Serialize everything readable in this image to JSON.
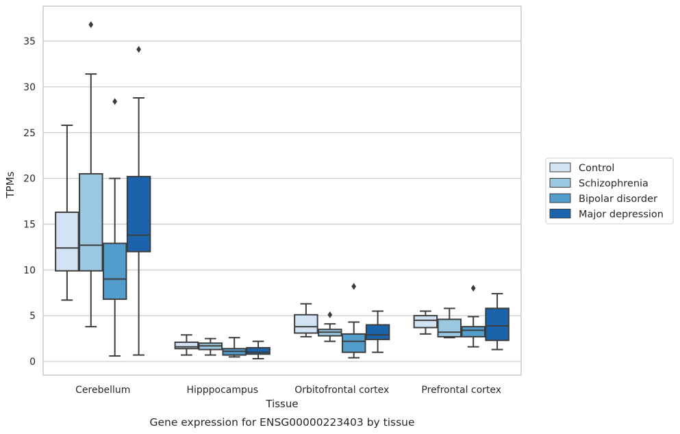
{
  "chart_data": {
    "type": "box",
    "title": "",
    "caption": "Gene expression for ENSG00000223403 by tissue",
    "xlabel": "Tissue",
    "ylabel": "TPMs",
    "ylim": [
      -1.5,
      38.5
    ],
    "yticks": [
      0,
      5,
      10,
      15,
      20,
      25,
      30,
      35
    ],
    "grid": "horizontal",
    "legend_position": "right",
    "categories": [
      "Cerebellum",
      "Hipppocampus",
      "Orbitofrontal cortex",
      "Prefrontal cortex"
    ],
    "series": [
      {
        "name": "Control",
        "color": "#d2e3f3",
        "boxes": [
          {
            "whisker_low": 6.7,
            "q1": 9.9,
            "median": 12.4,
            "q3": 16.3,
            "whisker_high": 25.8,
            "outliers": []
          },
          {
            "whisker_low": 0.7,
            "q1": 1.4,
            "median": 1.6,
            "q3": 2.1,
            "whisker_high": 2.9,
            "outliers": []
          },
          {
            "whisker_low": 2.7,
            "q1": 3.1,
            "median": 3.8,
            "q3": 5.1,
            "whisker_high": 6.3,
            "outliers": []
          },
          {
            "whisker_low": 3.0,
            "q1": 3.7,
            "median": 4.5,
            "q3": 5.0,
            "whisker_high": 5.5,
            "outliers": []
          }
        ]
      },
      {
        "name": "Schizophrenia",
        "color": "#9ac8e0",
        "boxes": [
          {
            "whisker_low": 3.8,
            "q1": 9.9,
            "median": 12.7,
            "q3": 20.5,
            "whisker_high": 31.4,
            "outliers": [
              36.8
            ]
          },
          {
            "whisker_low": 0.7,
            "q1": 1.3,
            "median": 1.7,
            "q3": 2.0,
            "whisker_high": 2.5,
            "outliers": []
          },
          {
            "whisker_low": 2.2,
            "q1": 2.8,
            "median": 3.2,
            "q3": 3.5,
            "whisker_high": 4.1,
            "outliers": [
              5.1
            ]
          },
          {
            "whisker_low": 2.6,
            "q1": 2.7,
            "median": 3.2,
            "q3": 4.6,
            "whisker_high": 5.8,
            "outliers": []
          }
        ]
      },
      {
        "name": "Bipolar disorder",
        "color": "#529dcc",
        "boxes": [
          {
            "whisker_low": 0.6,
            "q1": 6.8,
            "median": 9.0,
            "q3": 12.9,
            "whisker_high": 20.0,
            "outliers": [
              28.4
            ]
          },
          {
            "whisker_low": 0.5,
            "q1": 0.7,
            "median": 1.1,
            "q3": 1.4,
            "whisker_high": 2.6,
            "outliers": []
          },
          {
            "whisker_low": 0.4,
            "q1": 1.0,
            "median": 2.2,
            "q3": 3.0,
            "whisker_high": 4.3,
            "outliers": [
              8.2
            ]
          },
          {
            "whisker_low": 1.6,
            "q1": 2.7,
            "median": 3.4,
            "q3": 3.8,
            "whisker_high": 4.9,
            "outliers": [
              8.0
            ]
          }
        ]
      },
      {
        "name": "Major depression",
        "color": "#1b64ab",
        "boxes": [
          {
            "whisker_low": 0.7,
            "q1": 12.0,
            "median": 13.8,
            "q3": 20.2,
            "whisker_high": 28.8,
            "outliers": [
              34.1
            ]
          },
          {
            "whisker_low": 0.3,
            "q1": 0.8,
            "median": 1.0,
            "q3": 1.5,
            "whisker_high": 2.2,
            "outliers": []
          },
          {
            "whisker_low": 1.0,
            "q1": 2.4,
            "median": 2.9,
            "q3": 4.0,
            "whisker_high": 5.5,
            "outliers": []
          },
          {
            "whisker_low": 1.3,
            "q1": 2.3,
            "median": 3.9,
            "q3": 5.8,
            "whisker_high": 7.4,
            "outliers": []
          }
        ]
      }
    ]
  }
}
